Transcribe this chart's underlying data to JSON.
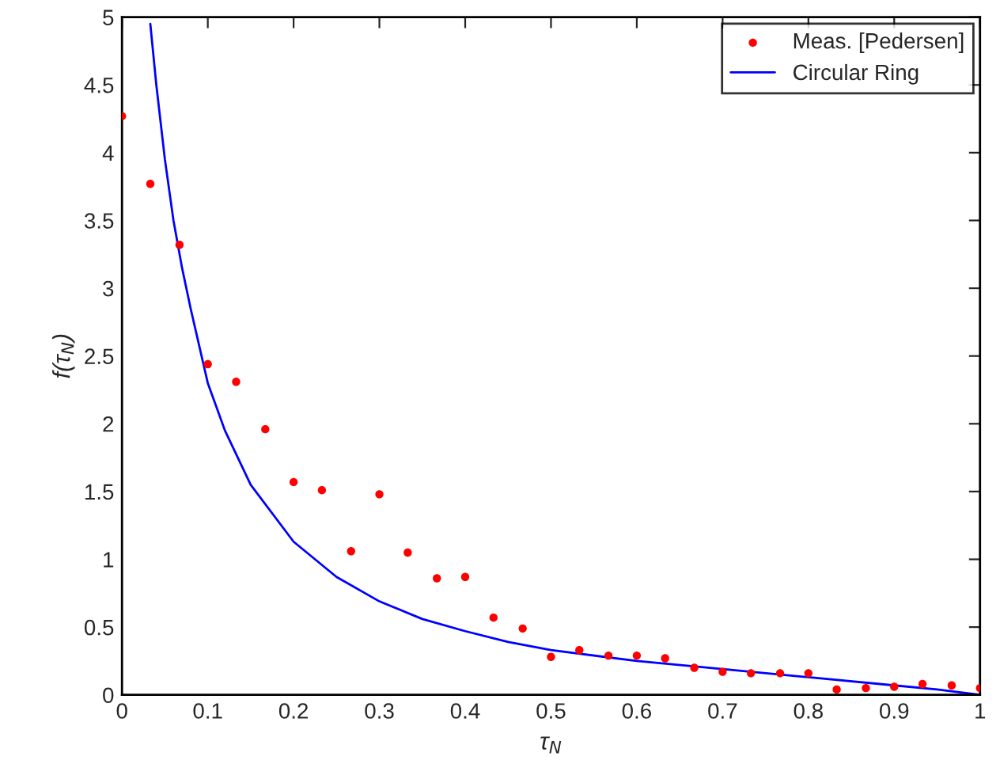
{
  "chart_data": {
    "type": "scatter",
    "xlabel": "τ$_{N}$",
    "ylabel": "f(τ$_{N}$)",
    "xlim": [
      0,
      1
    ],
    "ylim": [
      0,
      5
    ],
    "xticks": [
      0,
      0.1,
      0.2,
      0.3,
      0.4,
      0.5,
      0.6,
      0.7,
      0.8,
      0.9,
      1
    ],
    "yticks": [
      0,
      0.5,
      1,
      1.5,
      2,
      2.5,
      3,
      3.5,
      4,
      4.5,
      5
    ],
    "grid": false,
    "legend": "top right",
    "series": [
      {
        "name": "Meas. [Pedersen]",
        "marker": "circle",
        "color": "#ff0000",
        "x": [
          0,
          0.033,
          0.067,
          0.1,
          0.133,
          0.167,
          0.2,
          0.233,
          0.267,
          0.3,
          0.333,
          0.367,
          0.4,
          0.433,
          0.467,
          0.5,
          0.533,
          0.567,
          0.6,
          0.633,
          0.667,
          0.7,
          0.733,
          0.767,
          0.8,
          0.833,
          0.867,
          0.9,
          0.933,
          0.967,
          1
        ],
        "values": [
          4.27,
          3.77,
          3.32,
          2.44,
          2.31,
          1.96,
          1.57,
          1.51,
          1.06,
          1.48,
          1.05,
          0.86,
          0.87,
          0.57,
          0.49,
          0.28,
          0.33,
          0.29,
          0.29,
          0.27,
          0.2,
          0.17,
          0.16,
          0.16,
          0.16,
          0.04,
          0.05,
          0.06,
          0.08,
          0.07,
          0.05
        ]
      },
      {
        "name": "Circular Ring",
        "type": "line",
        "line_style": "solid",
        "color": "#0000ff",
        "x": [
          0.033,
          0.04,
          0.05,
          0.06,
          0.07,
          0.08,
          0.1,
          0.12,
          0.15,
          0.2,
          0.25,
          0.3,
          0.35,
          0.4,
          0.45,
          0.5,
          0.6,
          0.7,
          0.8,
          0.9,
          0.95,
          1
        ],
        "values": [
          4.95,
          4.5,
          3.95,
          3.5,
          3.15,
          2.85,
          2.3,
          1.95,
          1.55,
          1.13,
          0.87,
          0.69,
          0.56,
          0.47,
          0.39,
          0.33,
          0.25,
          0.19,
          0.13,
          0.07,
          0.04,
          0.0
        ]
      }
    ]
  }
}
